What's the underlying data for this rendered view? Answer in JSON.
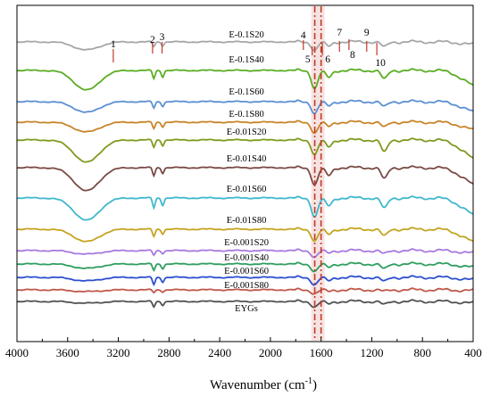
{
  "chart_data": {
    "type": "line",
    "title": "",
    "xlabel": "Wavenumber (cm",
    "xlabel_sup": "-1",
    "xlabel_end": ")",
    "ylabel": "",
    "x_reversed": true,
    "xlim": [
      4000,
      400
    ],
    "x_ticks": [
      "4000",
      "3600",
      "3200",
      "2800",
      "2400",
      "2000",
      "1600",
      "1200",
      "800",
      "400"
    ],
    "vertical_lines": [
      {
        "x": 1650,
        "color": "#c0392b",
        "style": "dash-dot"
      },
      {
        "x": 1600,
        "color": "#c0392b",
        "style": "dash-dot"
      }
    ],
    "series": [
      {
        "name": "E-0.1S20",
        "color": "#a6a6a6",
        "peaks": [
          {
            "x": 3450,
            "depth": 9
          },
          {
            "x": 2920,
            "depth": 5
          },
          {
            "x": 2850,
            "depth": 4
          },
          {
            "x": 1650,
            "depth": 9
          },
          {
            "x": 1540,
            "depth": 5
          },
          {
            "x": 1100,
            "depth": 6
          }
        ],
        "tail_drop": 3
      },
      {
        "name": "E-0.1S40",
        "color": "#5aad22",
        "peaks": [
          {
            "x": 3450,
            "depth": 22
          },
          {
            "x": 2920,
            "depth": 9
          },
          {
            "x": 2850,
            "depth": 7
          },
          {
            "x": 1650,
            "depth": 20
          },
          {
            "x": 1540,
            "depth": 8
          },
          {
            "x": 1100,
            "depth": 10
          }
        ],
        "tail_drop": 18
      },
      {
        "name": "E-0.1S60",
        "color": "#5b8fd4",
        "peaks": [
          {
            "x": 3450,
            "depth": 12
          },
          {
            "x": 2920,
            "depth": 7
          },
          {
            "x": 2850,
            "depth": 5
          },
          {
            "x": 1650,
            "depth": 13
          },
          {
            "x": 1540,
            "depth": 5
          },
          {
            "x": 1100,
            "depth": 6
          }
        ],
        "tail_drop": 12
      },
      {
        "name": "E-0.1S80",
        "color": "#c88428",
        "peaks": [
          {
            "x": 3450,
            "depth": 11
          },
          {
            "x": 2920,
            "depth": 7
          },
          {
            "x": 2850,
            "depth": 5
          },
          {
            "x": 1650,
            "depth": 12
          },
          {
            "x": 1540,
            "depth": 5
          },
          {
            "x": 1100,
            "depth": 6
          }
        ],
        "tail_drop": 9
      },
      {
        "name": "E-0.01S20",
        "color": "#7f9a1e",
        "peaks": [
          {
            "x": 3450,
            "depth": 25
          },
          {
            "x": 2920,
            "depth": 8
          },
          {
            "x": 2850,
            "depth": 6
          },
          {
            "x": 1650,
            "depth": 16
          },
          {
            "x": 1540,
            "depth": 8
          },
          {
            "x": 1100,
            "depth": 14
          }
        ],
        "tail_drop": 22
      },
      {
        "name": "E-0.01S40",
        "color": "#7a4a45",
        "peaks": [
          {
            "x": 3450,
            "depth": 26
          },
          {
            "x": 2920,
            "depth": 9
          },
          {
            "x": 2850,
            "depth": 6
          },
          {
            "x": 1650,
            "depth": 19
          },
          {
            "x": 1540,
            "depth": 9
          },
          {
            "x": 1100,
            "depth": 13
          }
        ],
        "tail_drop": 20
      },
      {
        "name": "E-0.01S60",
        "color": "#3fb8cc",
        "peaks": [
          {
            "x": 3450,
            "depth": 25
          },
          {
            "x": 2920,
            "depth": 11
          },
          {
            "x": 2850,
            "depth": 8
          },
          {
            "x": 1650,
            "depth": 21
          },
          {
            "x": 1540,
            "depth": 9
          },
          {
            "x": 1100,
            "depth": 12
          }
        ],
        "tail_drop": 20
      },
      {
        "name": "E-0.01S80",
        "color": "#c4a420",
        "peaks": [
          {
            "x": 3450,
            "depth": 14
          },
          {
            "x": 2920,
            "depth": 8
          },
          {
            "x": 2850,
            "depth": 5
          },
          {
            "x": 1650,
            "depth": 13
          },
          {
            "x": 1540,
            "depth": 6
          },
          {
            "x": 1100,
            "depth": 8
          }
        ],
        "tail_drop": 15
      },
      {
        "name": "E-0.001S20",
        "color": "#a779e0",
        "peaks": [
          {
            "x": 3450,
            "depth": 4
          },
          {
            "x": 2920,
            "depth": 5
          },
          {
            "x": 2850,
            "depth": 3
          },
          {
            "x": 1650,
            "depth": 7
          },
          {
            "x": 1540,
            "depth": 3
          },
          {
            "x": 1100,
            "depth": 4
          }
        ],
        "tail_drop": 3
      },
      {
        "name": "E-0.001S40",
        "color": "#2f9e5e",
        "peaks": [
          {
            "x": 3450,
            "depth": 5
          },
          {
            "x": 2920,
            "depth": 7
          },
          {
            "x": 2850,
            "depth": 5
          },
          {
            "x": 1650,
            "depth": 8
          },
          {
            "x": 1540,
            "depth": 4
          },
          {
            "x": 1100,
            "depth": 6
          }
        ],
        "tail_drop": 4
      },
      {
        "name": "E-0.001S60",
        "color": "#2c4fd0",
        "peaks": [
          {
            "x": 3450,
            "depth": 4
          },
          {
            "x": 2920,
            "depth": 8
          },
          {
            "x": 2850,
            "depth": 5
          },
          {
            "x": 1650,
            "depth": 8
          },
          {
            "x": 1540,
            "depth": 4
          },
          {
            "x": 1100,
            "depth": 5
          }
        ],
        "tail_drop": 3
      },
      {
        "name": "E-0.001S80",
        "color": "#c0574a",
        "peaks": [
          {
            "x": 3450,
            "depth": 2
          },
          {
            "x": 2920,
            "depth": 3
          },
          {
            "x": 2850,
            "depth": 2
          },
          {
            "x": 1650,
            "depth": 4
          },
          {
            "x": 1540,
            "depth": 2
          },
          {
            "x": 1100,
            "depth": 2
          }
        ],
        "tail_drop": 1
      },
      {
        "name": "EYGs",
        "color": "#505050",
        "peaks": [
          {
            "x": 3450,
            "depth": 2
          },
          {
            "x": 2920,
            "depth": 6
          },
          {
            "x": 2850,
            "depth": 4
          },
          {
            "x": 1650,
            "depth": 6
          },
          {
            "x": 1540,
            "depth": 3
          },
          {
            "x": 1100,
            "depth": 4
          }
        ],
        "tail_drop": 2
      }
    ],
    "annotations": [
      {
        "label": "1",
        "x": 3240
      },
      {
        "label": "2",
        "x": 2930
      },
      {
        "label": "3",
        "x": 2855
      },
      {
        "label": "4",
        "x": 1740
      },
      {
        "label": "5",
        "x": 1670
      },
      {
        "label": "6",
        "x": 1590
      },
      {
        "label": "7",
        "x": 1455
      },
      {
        "label": "8",
        "x": 1380
      },
      {
        "label": "9",
        "x": 1240
      },
      {
        "label": "10",
        "x": 1160
      }
    ],
    "grid": false,
    "legend": "inline labels"
  }
}
